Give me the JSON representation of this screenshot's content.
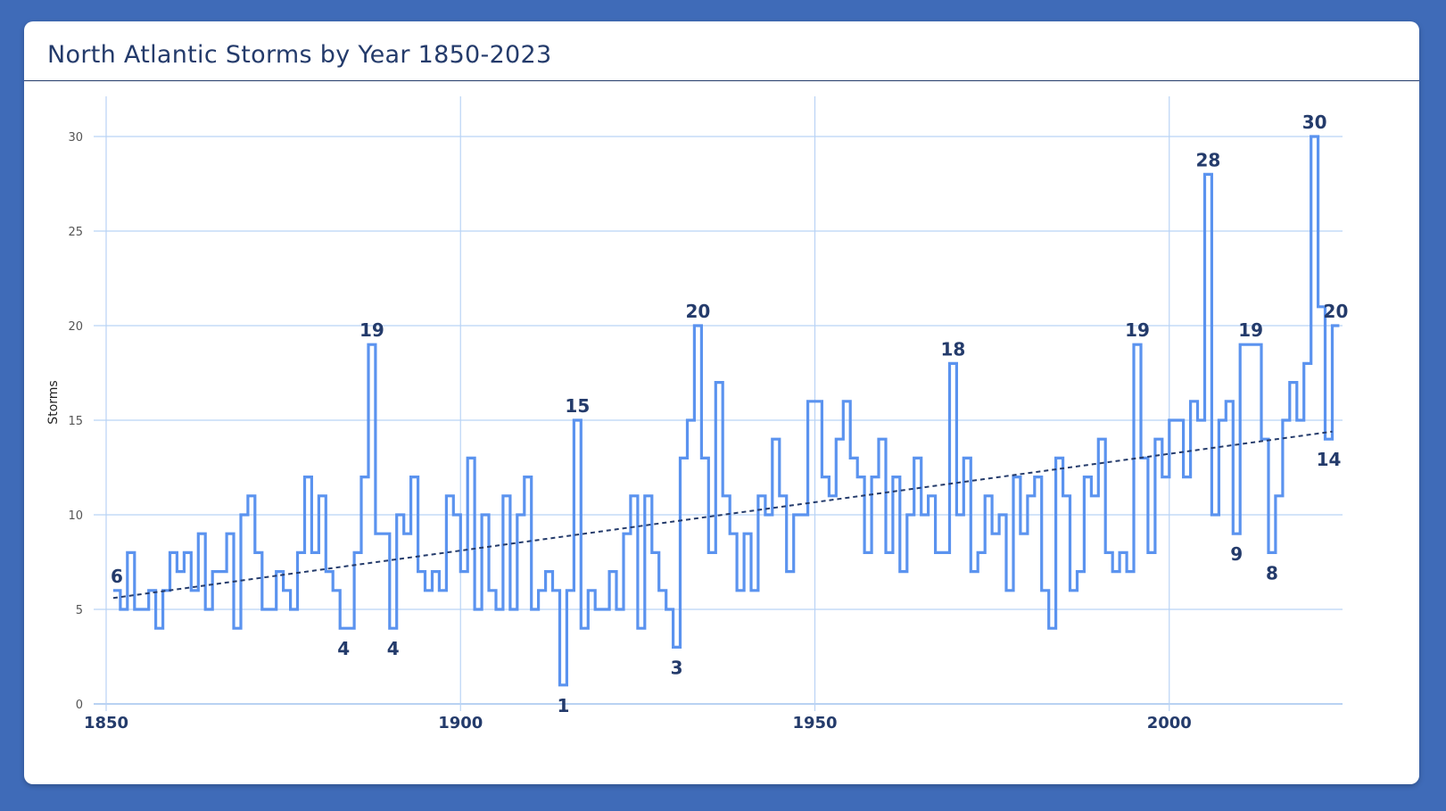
{
  "card": {
    "title": "North Atlantic Storms by Year 1850-2023"
  },
  "colors": {
    "background": "#3f6bb8",
    "line": "#5b93ef",
    "trend": "#243b6b",
    "grid": "#b9d3f5",
    "text": "#243b6b"
  },
  "chart_data": {
    "type": "line",
    "step": true,
    "title": "North Atlantic Storms by Year 1850-2023",
    "xlabel": "",
    "ylabel": "Storms",
    "xlim": [
      1850,
      2023
    ],
    "ylim": [
      0,
      32
    ],
    "x_ticks": [
      1850,
      1900,
      1950,
      2000
    ],
    "y_ticks": [
      0,
      5,
      10,
      15,
      20,
      25,
      30
    ],
    "grid": true,
    "trendline": {
      "from": [
        1851,
        5.6
      ],
      "to": [
        2023,
        14.4
      ],
      "style": "dashed"
    },
    "series": [
      {
        "name": "Storms",
        "x_start": 1851,
        "values": [
          6,
          5,
          8,
          5,
          5,
          6,
          4,
          6,
          8,
          7,
          8,
          6,
          9,
          5,
          7,
          7,
          9,
          4,
          10,
          11,
          8,
          5,
          5,
          7,
          6,
          5,
          8,
          12,
          8,
          11,
          7,
          6,
          4,
          4,
          8,
          12,
          19,
          9,
          9,
          4,
          10,
          9,
          12,
          7,
          6,
          7,
          6,
          11,
          10,
          7,
          13,
          5,
          10,
          6,
          5,
          11,
          5,
          10,
          12,
          5,
          6,
          7,
          6,
          1,
          6,
          15,
          4,
          6,
          5,
          5,
          7,
          5,
          9,
          11,
          4,
          11,
          8,
          6,
          5,
          3,
          13,
          15,
          20,
          13,
          8,
          17,
          11,
          9,
          6,
          9,
          6,
          11,
          10,
          14,
          11,
          7,
          10,
          10,
          16,
          16,
          12,
          11,
          14,
          16,
          13,
          12,
          8,
          12,
          14,
          8,
          12,
          7,
          10,
          13,
          10,
          11,
          8,
          8,
          18,
          10,
          13,
          7,
          8,
          11,
          9,
          10,
          6,
          12,
          9,
          11,
          12,
          6,
          4,
          13,
          11,
          6,
          7,
          12,
          11,
          14,
          8,
          7,
          8,
          7,
          19,
          13,
          8,
          14,
          12,
          15,
          15,
          12,
          16,
          15,
          28,
          10,
          15,
          16,
          9,
          19,
          19,
          19,
          14,
          8,
          11,
          15,
          17,
          15,
          18,
          30,
          21,
          14,
          20
        ]
      }
    ],
    "annotations": [
      {
        "year": 1851,
        "value": 6,
        "label": "6",
        "position": "above"
      },
      {
        "year": 1883,
        "value": 4,
        "label": "4",
        "position": "below"
      },
      {
        "year": 1887,
        "value": 19,
        "label": "19",
        "position": "above"
      },
      {
        "year": 1890,
        "value": 4,
        "label": "4",
        "position": "below"
      },
      {
        "year": 1914,
        "value": 1,
        "label": "1",
        "position": "below"
      },
      {
        "year": 1916,
        "value": 15,
        "label": "15",
        "position": "above"
      },
      {
        "year": 1930,
        "value": 3,
        "label": "3",
        "position": "below"
      },
      {
        "year": 1933,
        "value": 20,
        "label": "20",
        "position": "above"
      },
      {
        "year": 1969,
        "value": 18,
        "label": "18",
        "position": "above"
      },
      {
        "year": 1995,
        "value": 19,
        "label": "19",
        "position": "above"
      },
      {
        "year": 2005,
        "value": 28,
        "label": "28",
        "position": "above"
      },
      {
        "year": 2009,
        "value": 9,
        "label": "9",
        "position": "below"
      },
      {
        "year": 2011,
        "value": 19,
        "label": "19",
        "position": "above"
      },
      {
        "year": 2014,
        "value": 8,
        "label": "8",
        "position": "below"
      },
      {
        "year": 2020,
        "value": 30,
        "label": "30",
        "position": "above"
      },
      {
        "year": 2022,
        "value": 14,
        "label": "14",
        "position": "below"
      },
      {
        "year": 2023,
        "value": 20,
        "label": "20",
        "position": "above"
      }
    ]
  }
}
